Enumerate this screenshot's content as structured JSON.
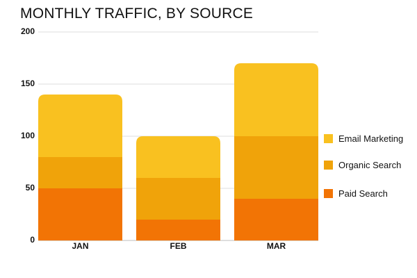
{
  "chart_data": {
    "type": "bar",
    "stacked": true,
    "title": "MONTHLY TRAFFIC, BY SOURCE",
    "categories": [
      "JAN",
      "FEB",
      "MAR"
    ],
    "series": [
      {
        "name": "Paid Search",
        "values": [
          50,
          20,
          40
        ],
        "color": "#f27405"
      },
      {
        "name": "Organic Search",
        "values": [
          30,
          40,
          60
        ],
        "color": "#f0a30a"
      },
      {
        "name": "Email Marketing",
        "values": [
          60,
          40,
          70
        ],
        "color": "#f9c120"
      }
    ],
    "yticks": [
      0,
      50,
      100,
      150,
      200
    ],
    "ylim": [
      0,
      200
    ],
    "grid": true,
    "legend": "right"
  }
}
